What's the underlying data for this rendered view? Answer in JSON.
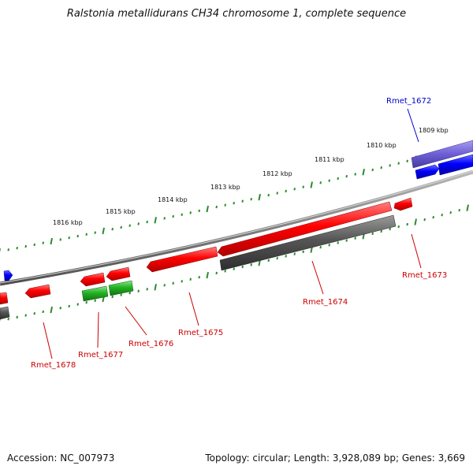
{
  "title": "Ralstonia metallidurans CH34 chromosome 1, complete sequence",
  "footer": {
    "accession": "Accession: NC_007973",
    "summary": "Topology: circular; Length: 3,928,089 bp; Genes: 3,669"
  },
  "colors": {
    "forward_cds": "#ff0000",
    "reverse_cds": "#ff0000",
    "blue_cds": "#0000ff",
    "highlight_gene": "#6c5fd6",
    "rna_green": "#22b322",
    "product_grey": "#555555",
    "backbone": "#7f7f7f",
    "tick": "#2e8b2e",
    "red_label": "#cc0000",
    "blue_label": "#0000cc"
  },
  "ticks": [
    "1809 kbp",
    "1810 kbp",
    "1811 kbp",
    "1812 kbp",
    "1813 kbp",
    "1814 kbp",
    "1815 kbp",
    "1816 kbp"
  ],
  "genes": [
    {
      "id": "Rmet_1672",
      "label": "Rmet_1672",
      "color": "blue_label"
    },
    {
      "id": "Rmet_1673",
      "label": "Rmet_1673",
      "color": "red_label"
    },
    {
      "id": "Rmet_1674",
      "label": "Rmet_1674",
      "color": "red_label"
    },
    {
      "id": "Rmet_1675",
      "label": "Rmet_1675",
      "color": "red_label"
    },
    {
      "id": "Rmet_1676",
      "label": "Rmet_1676",
      "color": "red_label"
    },
    {
      "id": "Rmet_1677",
      "label": "Rmet_1677",
      "color": "red_label"
    },
    {
      "id": "Rmet_1678",
      "label": "Rmet_1678",
      "color": "red_label"
    }
  ]
}
